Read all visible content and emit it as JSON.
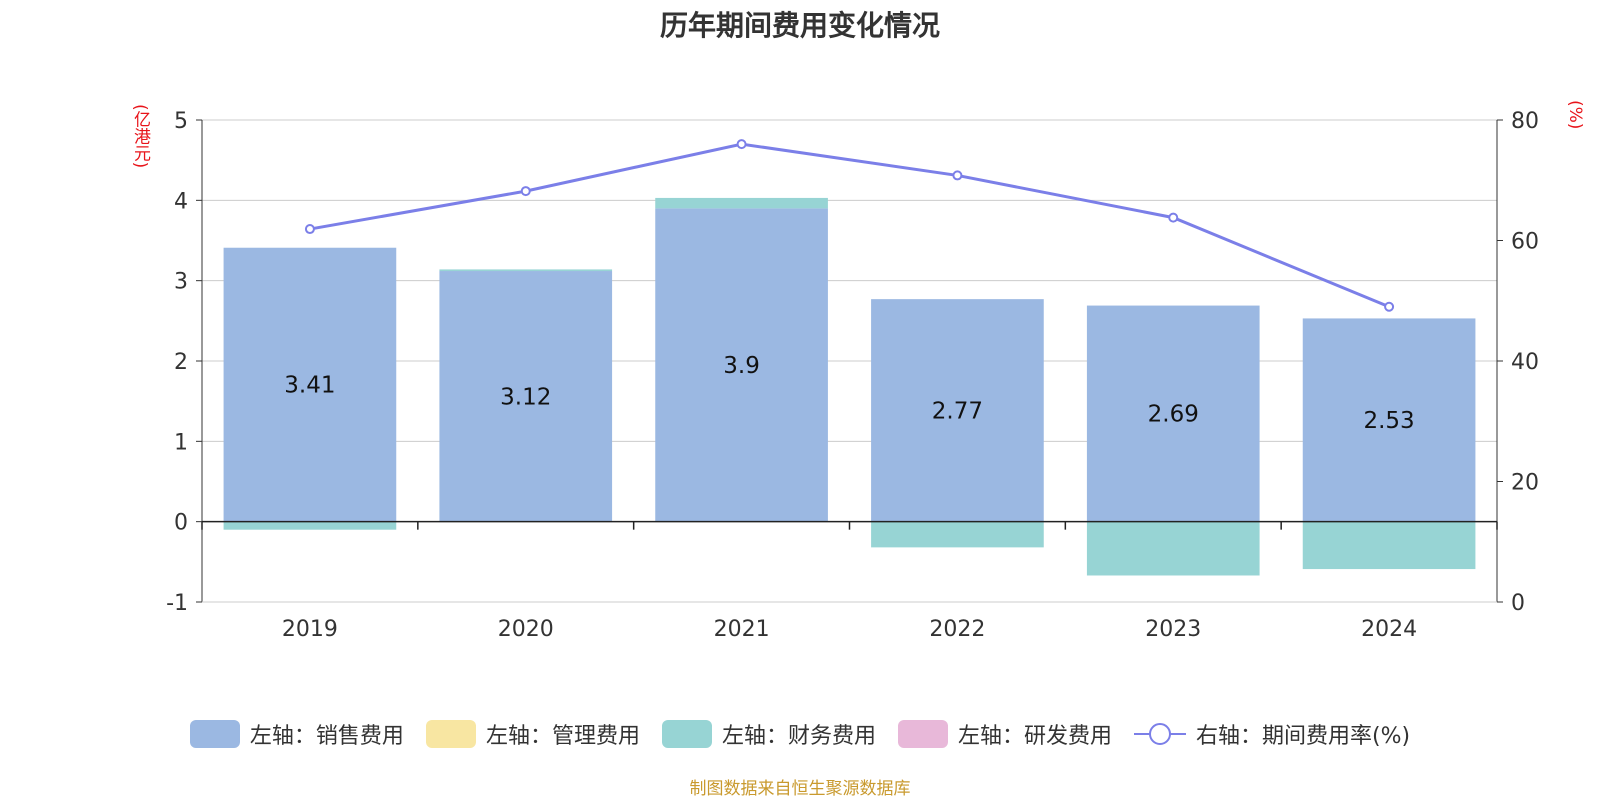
{
  "chart_data": {
    "type": "bar",
    "title": "历年期间费用变化情况",
    "left_unit": "(亿港元)",
    "right_unit": "(%)",
    "categories": [
      "2019",
      "2020",
      "2021",
      "2022",
      "2023",
      "2024"
    ],
    "y_left": {
      "min": -1,
      "max": 5,
      "ticks": [
        -1,
        0,
        1,
        2,
        3,
        4,
        5
      ]
    },
    "y_right": {
      "min": 0,
      "max": 80,
      "ticks": [
        0,
        20,
        40,
        60,
        80
      ]
    },
    "stacked": true,
    "grid": true,
    "legend_position": "bottom",
    "series": [
      {
        "name": "左轴：销售费用",
        "axis": "left",
        "kind": "bar",
        "color": "#9bb8e2",
        "values": [
          3.41,
          3.12,
          3.9,
          2.77,
          2.69,
          2.53
        ],
        "labels": [
          "3.41",
          "3.12",
          "3.9",
          "2.77",
          "2.69",
          "2.53"
        ]
      },
      {
        "name": "左轴：管理费用",
        "axis": "left",
        "kind": "bar",
        "color": "#f8e6a2",
        "values": [
          0,
          0,
          0,
          0,
          0,
          0
        ]
      },
      {
        "name": "左轴：财务费用",
        "axis": "left",
        "kind": "bar",
        "color": "#97d4d4",
        "values": [
          -0.1,
          0.02,
          0.13,
          -0.32,
          -0.67,
          -0.59
        ]
      },
      {
        "name": "左轴：研发费用",
        "axis": "left",
        "kind": "bar",
        "color": "#e8b8d9",
        "values": [
          0,
          0,
          0,
          0,
          0,
          0
        ]
      },
      {
        "name": "右轴：期间费用率(%)",
        "axis": "right",
        "kind": "line",
        "color": "#7b7fe8",
        "values": [
          61.9,
          68.2,
          76.0,
          70.8,
          63.8,
          49.0
        ]
      }
    ]
  },
  "source_text": "制图数据来自恒生聚源数据库"
}
